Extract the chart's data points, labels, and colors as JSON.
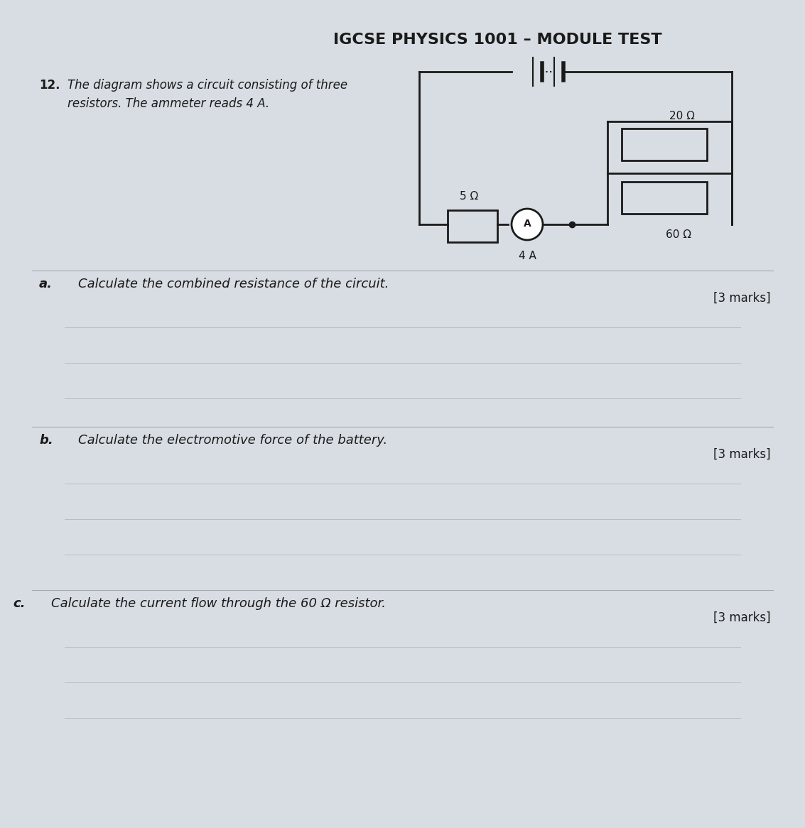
{
  "title": "IGCSE PHYSICS 1001 – MODULE TEST",
  "title_fontsize": 16,
  "title_fontweight": "bold",
  "question_num": "12.",
  "question_text": "The diagram shows a circuit consisting of three\nresistors. The ammeter reads 4 A.",
  "q_a_label": "a.",
  "q_a_text": "Calculate the combined resistance of the circuit.",
  "q_a_marks": "[3 marks]",
  "q_b_label": "b.",
  "q_b_text": "Calculate the electromotive force of the battery.",
  "q_b_marks": "[3 marks]",
  "q_c_label": "c.",
  "q_c_text": "Calculate the current flow through the 60 Ω resistor.",
  "q_c_marks": "[3 marks]",
  "bg_color": "#d8dde3",
  "text_color": "#1a1a1a",
  "circuit_line_color": "#1a1a1a",
  "resistor_5": "5 Ω",
  "resistor_20": "20 Ω",
  "resistor_60": "60 Ω",
  "ammeter_label": "A",
  "ammeter_reading": "4 A",
  "font_italic": "italic",
  "font_normal": "normal"
}
